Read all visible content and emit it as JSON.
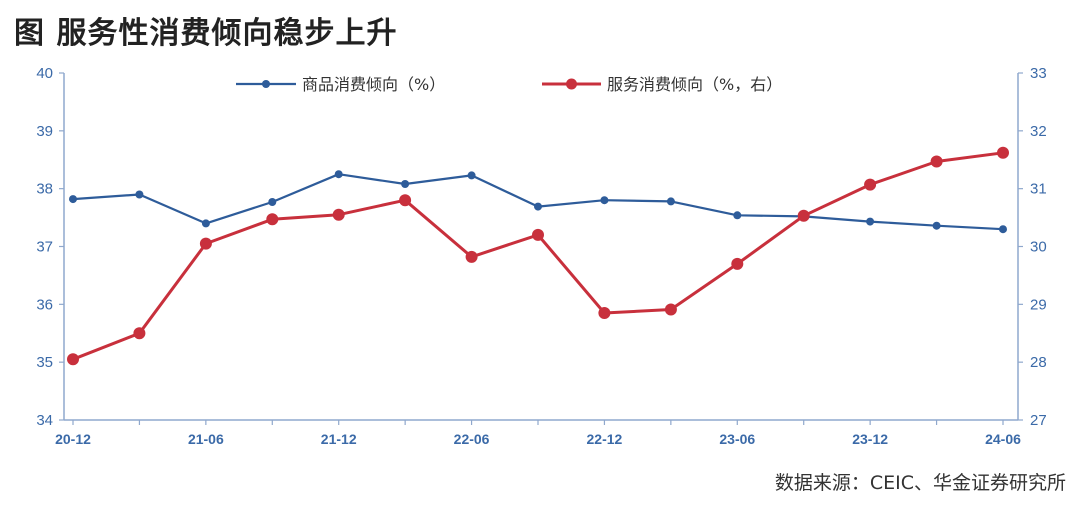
{
  "title": "图  服务性消费倾向稳步上升",
  "source": "数据来源：CEIC、华金证券研究所",
  "colors": {
    "axis": "#8fa8cd",
    "tick": "#3b6aa8",
    "series_goods": "#2e5c9a",
    "series_services": "#c8303c"
  },
  "chart_data": {
    "type": "line",
    "x": [
      "20-12",
      "21-03",
      "21-06",
      "21-09",
      "21-12",
      "22-03",
      "22-06",
      "22-09",
      "22-12",
      "23-03",
      "23-06",
      "23-09",
      "23-12",
      "24-03",
      "24-06"
    ],
    "x_tick_labels": [
      "20-12",
      "21-06",
      "21-12",
      "22-06",
      "22-12",
      "23-06",
      "23-12",
      "24-06"
    ],
    "series": [
      {
        "name": "商品消费倾向（%）",
        "axis": "left",
        "color": "#2e5c9a",
        "values": [
          37.82,
          37.9,
          37.4,
          37.77,
          38.25,
          38.08,
          38.23,
          37.69,
          37.8,
          37.78,
          37.54,
          37.52,
          37.43,
          37.36,
          37.3
        ]
      },
      {
        "name": "服务消费倾向（%，右）",
        "axis": "right",
        "color": "#c8303c",
        "values": [
          28.05,
          28.5,
          30.05,
          30.47,
          30.55,
          30.8,
          29.82,
          30.2,
          28.85,
          28.91,
          29.7,
          30.53,
          31.07,
          31.47,
          31.62
        ]
      }
    ],
    "y_left": {
      "ylim": [
        34,
        40
      ],
      "ticks": [
        "34",
        "35",
        "36",
        "37",
        "38",
        "39",
        "40"
      ]
    },
    "y_right": {
      "ylim": [
        27,
        33
      ],
      "ticks": [
        "27",
        "28",
        "29",
        "30",
        "31",
        "32",
        "33"
      ]
    },
    "grid": false,
    "legend_position": "top"
  }
}
